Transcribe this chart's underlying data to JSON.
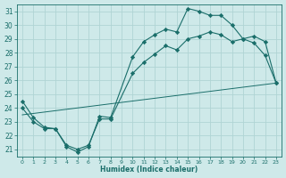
{
  "xlabel": "Humidex (Indice chaleur)",
  "bg_color": "#cee9e9",
  "grid_color": "#b0d4d4",
  "line_color": "#1a6e6a",
  "xlim": [
    -0.5,
    23.5
  ],
  "ylim": [
    20.5,
    31.5
  ],
  "xticks": [
    0,
    1,
    2,
    3,
    4,
    5,
    6,
    7,
    8,
    9,
    10,
    11,
    12,
    13,
    14,
    15,
    16,
    17,
    18,
    19,
    20,
    21,
    22,
    23
  ],
  "yticks": [
    21,
    22,
    23,
    24,
    25,
    26,
    27,
    28,
    29,
    30,
    31
  ],
  "line1_x": [
    0,
    1,
    2,
    3,
    4,
    5,
    6,
    7,
    8,
    10,
    11,
    12,
    13,
    14,
    15,
    16,
    17,
    18,
    19,
    20,
    21,
    22,
    23
  ],
  "line1_y": [
    24.5,
    23.3,
    22.6,
    22.5,
    21.2,
    20.8,
    21.2,
    23.4,
    23.3,
    27.7,
    28.8,
    29.3,
    29.7,
    29.5,
    31.2,
    31.0,
    30.7,
    30.7,
    30.0,
    29.0,
    28.7,
    27.8,
    25.8
  ],
  "line2_x": [
    0,
    1,
    2,
    3,
    4,
    5,
    6,
    7,
    8,
    10,
    11,
    12,
    13,
    14,
    15,
    16,
    17,
    18,
    19,
    20,
    21,
    22,
    23
  ],
  "line2_y": [
    24.0,
    23.0,
    22.5,
    22.5,
    21.3,
    21.0,
    21.3,
    23.2,
    23.2,
    26.5,
    27.3,
    27.9,
    28.5,
    28.2,
    29.0,
    29.2,
    29.5,
    29.3,
    28.8,
    29.0,
    29.2,
    28.8,
    25.8
  ],
  "line3_x": [
    0,
    23
  ],
  "line3_y": [
    23.5,
    25.8
  ]
}
